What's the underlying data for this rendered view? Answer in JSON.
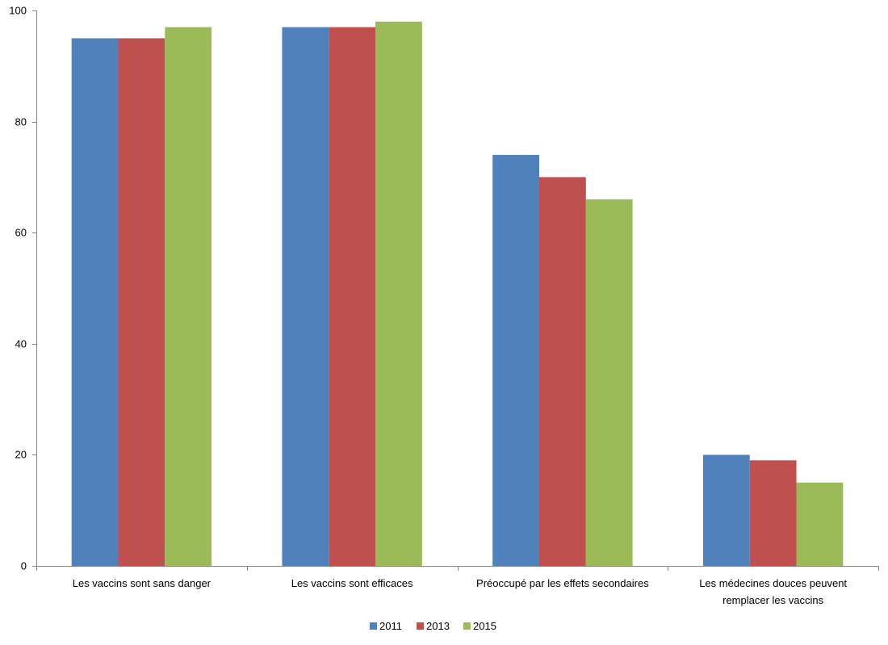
{
  "chart_data": {
    "type": "bar",
    "title": "",
    "xlabel": "",
    "ylabel": "",
    "ylim": [
      0,
      100
    ],
    "yticks": [
      0,
      20,
      40,
      60,
      80,
      100
    ],
    "grid": false,
    "legend_position": "bottom",
    "categories": [
      [
        "Les vaccins sont sans danger"
      ],
      [
        "Les vaccins sont efficaces"
      ],
      [
        "Préoccupé par les effets secondaires"
      ],
      [
        "Les médecines douces peuvent",
        "remplacer les vaccins"
      ]
    ],
    "series": [
      {
        "name": "2011",
        "color": "#4F81BD",
        "values": [
          95,
          97,
          74,
          20
        ]
      },
      {
        "name": "2013",
        "color": "#C0504D",
        "values": [
          95,
          97,
          70,
          19
        ]
      },
      {
        "name": "2015",
        "color": "#9BBB59",
        "values": [
          97,
          98,
          66,
          15
        ]
      }
    ]
  }
}
